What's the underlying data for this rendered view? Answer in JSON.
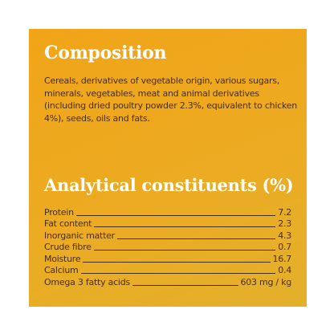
{
  "composition": {
    "title": "Composition",
    "text": "Cereals, derivatives of vegetable origin, various sugars, minerals, vegetables, meat and animal derivatives (including dried poultry powder 2.3%, equivalent to chicken 4%), seeds, oils and fats."
  },
  "analytical": {
    "title": "Analytical constituents (%)",
    "rows": [
      {
        "name": "Protein",
        "value": "7.2"
      },
      {
        "name": "Fat content",
        "value": "2.3"
      },
      {
        "name": "Inorganic matter",
        "value": "4.3"
      },
      {
        "name": "Crude fibre",
        "value": "0.7"
      },
      {
        "name": "Moisture",
        "value": "16.7"
      },
      {
        "name": "Calcium",
        "value": "0.4"
      },
      {
        "name": "Omega 3 fatty acids",
        "value": "603 mg / kg"
      }
    ]
  },
  "colors": {
    "panel": "#f1a418",
    "heading": "#ffffff",
    "text": "#4a2e0c"
  }
}
